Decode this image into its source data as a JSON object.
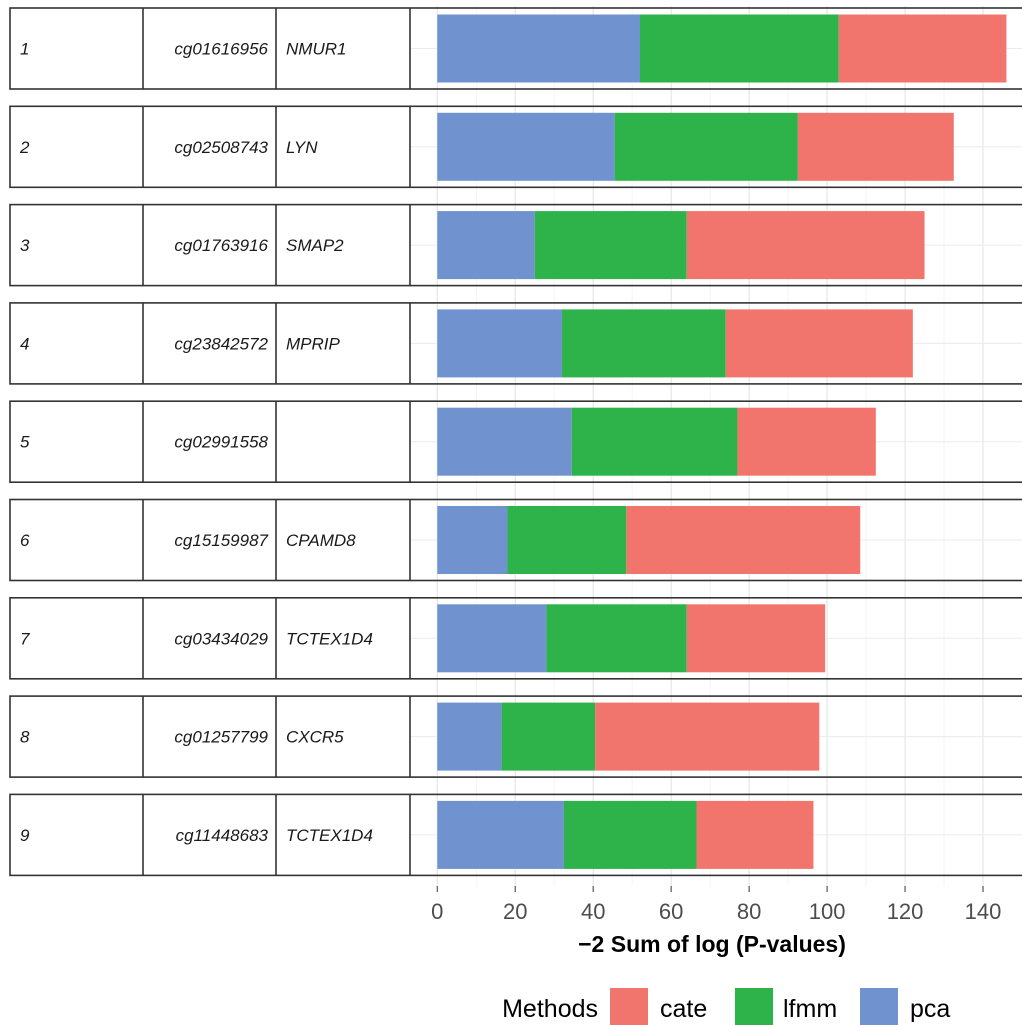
{
  "chart_data": {
    "type": "bar",
    "orientation": "horizontal",
    "stacked": true,
    "xlabel": "−2  Sum of log (P-values)",
    "xlim": [
      -7,
      150
    ],
    "xticks": [
      0,
      20,
      40,
      60,
      80,
      100,
      120,
      140
    ],
    "grid": true,
    "legend": {
      "title": "Methods",
      "position": "bottom",
      "entries": [
        {
          "name": "cate",
          "color": "#F2756D"
        },
        {
          "name": "lfmm",
          "color": "#2EB34A"
        },
        {
          "name": "pca",
          "color": "#7092CE"
        }
      ]
    },
    "stack_order": [
      "pca",
      "lfmm",
      "cate"
    ],
    "rows": [
      {
        "rank": "1",
        "probe": "cg01616956",
        "gene": "NMUR1",
        "pca": 52,
        "lfmm": 51,
        "cate": 43
      },
      {
        "rank": "2",
        "probe": "cg02508743",
        "gene": "LYN",
        "pca": 45.5,
        "lfmm": 47,
        "cate": 40
      },
      {
        "rank": "3",
        "probe": "cg01763916",
        "gene": "SMAP2",
        "pca": 25,
        "lfmm": 39,
        "cate": 61
      },
      {
        "rank": "4",
        "probe": "cg23842572",
        "gene": "MPRIP",
        "pca": 32,
        "lfmm": 42,
        "cate": 48
      },
      {
        "rank": "5",
        "probe": "cg02991558",
        "gene": "",
        "pca": 34.5,
        "lfmm": 42.5,
        "cate": 35.5
      },
      {
        "rank": "6",
        "probe": "cg15159987",
        "gene": "CPAMD8",
        "pca": 18,
        "lfmm": 30.5,
        "cate": 60
      },
      {
        "rank": "7",
        "probe": "cg03434029",
        "gene": "TCTEX1D4",
        "pca": 28,
        "lfmm": 36,
        "cate": 35.5
      },
      {
        "rank": "8",
        "probe": "cg01257799",
        "gene": "CXCR5",
        "pca": 16.5,
        "lfmm": 24,
        "cate": 57.5
      },
      {
        "rank": "9",
        "probe": "cg11448683",
        "gene": "TCTEX1D4",
        "pca": 32.5,
        "lfmm": 34,
        "cate": 30
      }
    ]
  }
}
